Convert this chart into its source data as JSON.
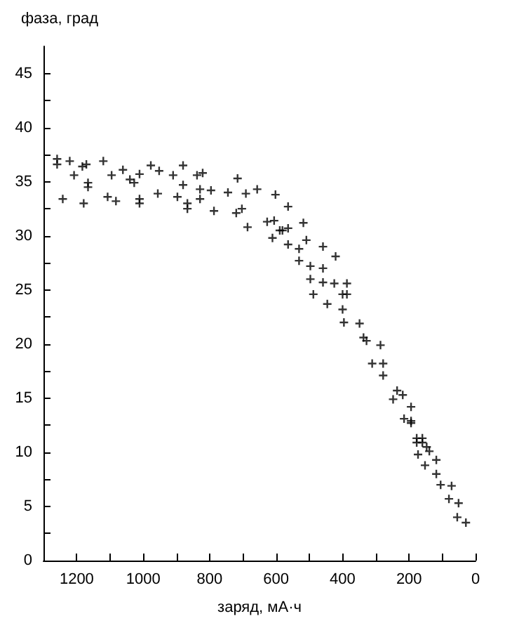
{
  "chart_data": {
    "type": "scatter",
    "xlabel": "заряд, мА·ч",
    "ylabel": "фаза, град",
    "xlim": [
      1300,
      0
    ],
    "xticks": [
      0,
      {
        "value": 100,
        "label": null
      },
      200,
      {
        "value": 300,
        "label": null
      },
      400,
      {
        "value": 500,
        "label": null
      },
      600,
      {
        "value": 700,
        "label": null
      },
      800,
      {
        "value": 900,
        "label": null
      },
      1000,
      {
        "value": 1100,
        "label": null
      },
      1200
    ],
    "ylim": [
      0,
      47.5
    ],
    "yticks": [
      0,
      {
        "value": 2.5,
        "label": null
      },
      5,
      {
        "value": 7.5,
        "label": null
      },
      10,
      {
        "value": 12.5,
        "label": null
      },
      15,
      {
        "value": 17.5,
        "label": null
      },
      20,
      {
        "value": 22.5,
        "label": null
      },
      25,
      {
        "value": 27.5,
        "label": null
      },
      30,
      {
        "value": 32.5,
        "label": null
      },
      35,
      {
        "value": 37.5,
        "label": null
      },
      40,
      {
        "value": 42.5,
        "label": null
      },
      45
    ],
    "grid": false,
    "marker": "cross",
    "series": [
      {
        "color": "#000000",
        "x": [
          1259,
          1259,
          1242,
          1221,
          1208,
          1183,
          1171,
          1179,
          1166,
          1166,
          1120,
          1107,
          1095,
          1082,
          1061,
          1040,
          1027,
          1011,
          1011,
          1011,
          977,
          956,
          952,
          910,
          897,
          880,
          880,
          867,
          867,
          838,
          829,
          821,
          829,
          796,
          787,
          745,
          720,
          716,
          703,
          691,
          686,
          657,
          627,
          606,
          611,
          602,
          589,
          581,
          564,
          564,
          564,
          518,
          531,
          509,
          459,
          421,
          531,
          497,
          459,
          497,
          459,
          425,
          387,
          488,
          400,
          387,
          446,
          400,
          396,
          349,
          337,
          328,
          286,
          311,
          278,
          278,
          236,
          248,
          219,
          194,
          215,
          194,
          194,
          177,
          177,
          160,
          160,
          147,
          139,
          173,
          118,
          152,
          118,
          105,
          72,
          80,
          51,
          55,
          29
        ],
        "values": [
          37.1,
          36.6,
          33.4,
          36.9,
          35.6,
          36.4,
          36.6,
          33.0,
          34.9,
          34.5,
          36.9,
          33.6,
          35.6,
          33.2,
          36.1,
          35.2,
          34.9,
          35.7,
          33.4,
          33.0,
          36.5,
          33.9,
          36.0,
          35.6,
          33.6,
          36.5,
          34.7,
          33.0,
          32.5,
          35.6,
          34.3,
          35.8,
          33.4,
          34.2,
          32.3,
          34.0,
          32.1,
          35.3,
          32.5,
          33.9,
          30.8,
          34.3,
          31.3,
          31.4,
          29.8,
          33.8,
          30.5,
          30.5,
          30.7,
          29.2,
          32.7,
          31.2,
          28.8,
          29.6,
          29.0,
          28.1,
          27.7,
          27.2,
          27.0,
          26.0,
          25.7,
          25.6,
          25.6,
          24.6,
          24.6,
          24.6,
          23.7,
          23.2,
          22.0,
          21.9,
          20.6,
          20.3,
          19.9,
          18.2,
          18.2,
          17.1,
          15.7,
          14.9,
          15.3,
          14.2,
          13.1,
          12.9,
          12.7,
          11.3,
          10.9,
          11.3,
          10.9,
          10.5,
          10.1,
          9.8,
          9.3,
          8.8,
          8.0,
          7.0,
          6.9,
          5.7,
          5.3,
          4.0,
          3.5
        ]
      }
    ]
  }
}
